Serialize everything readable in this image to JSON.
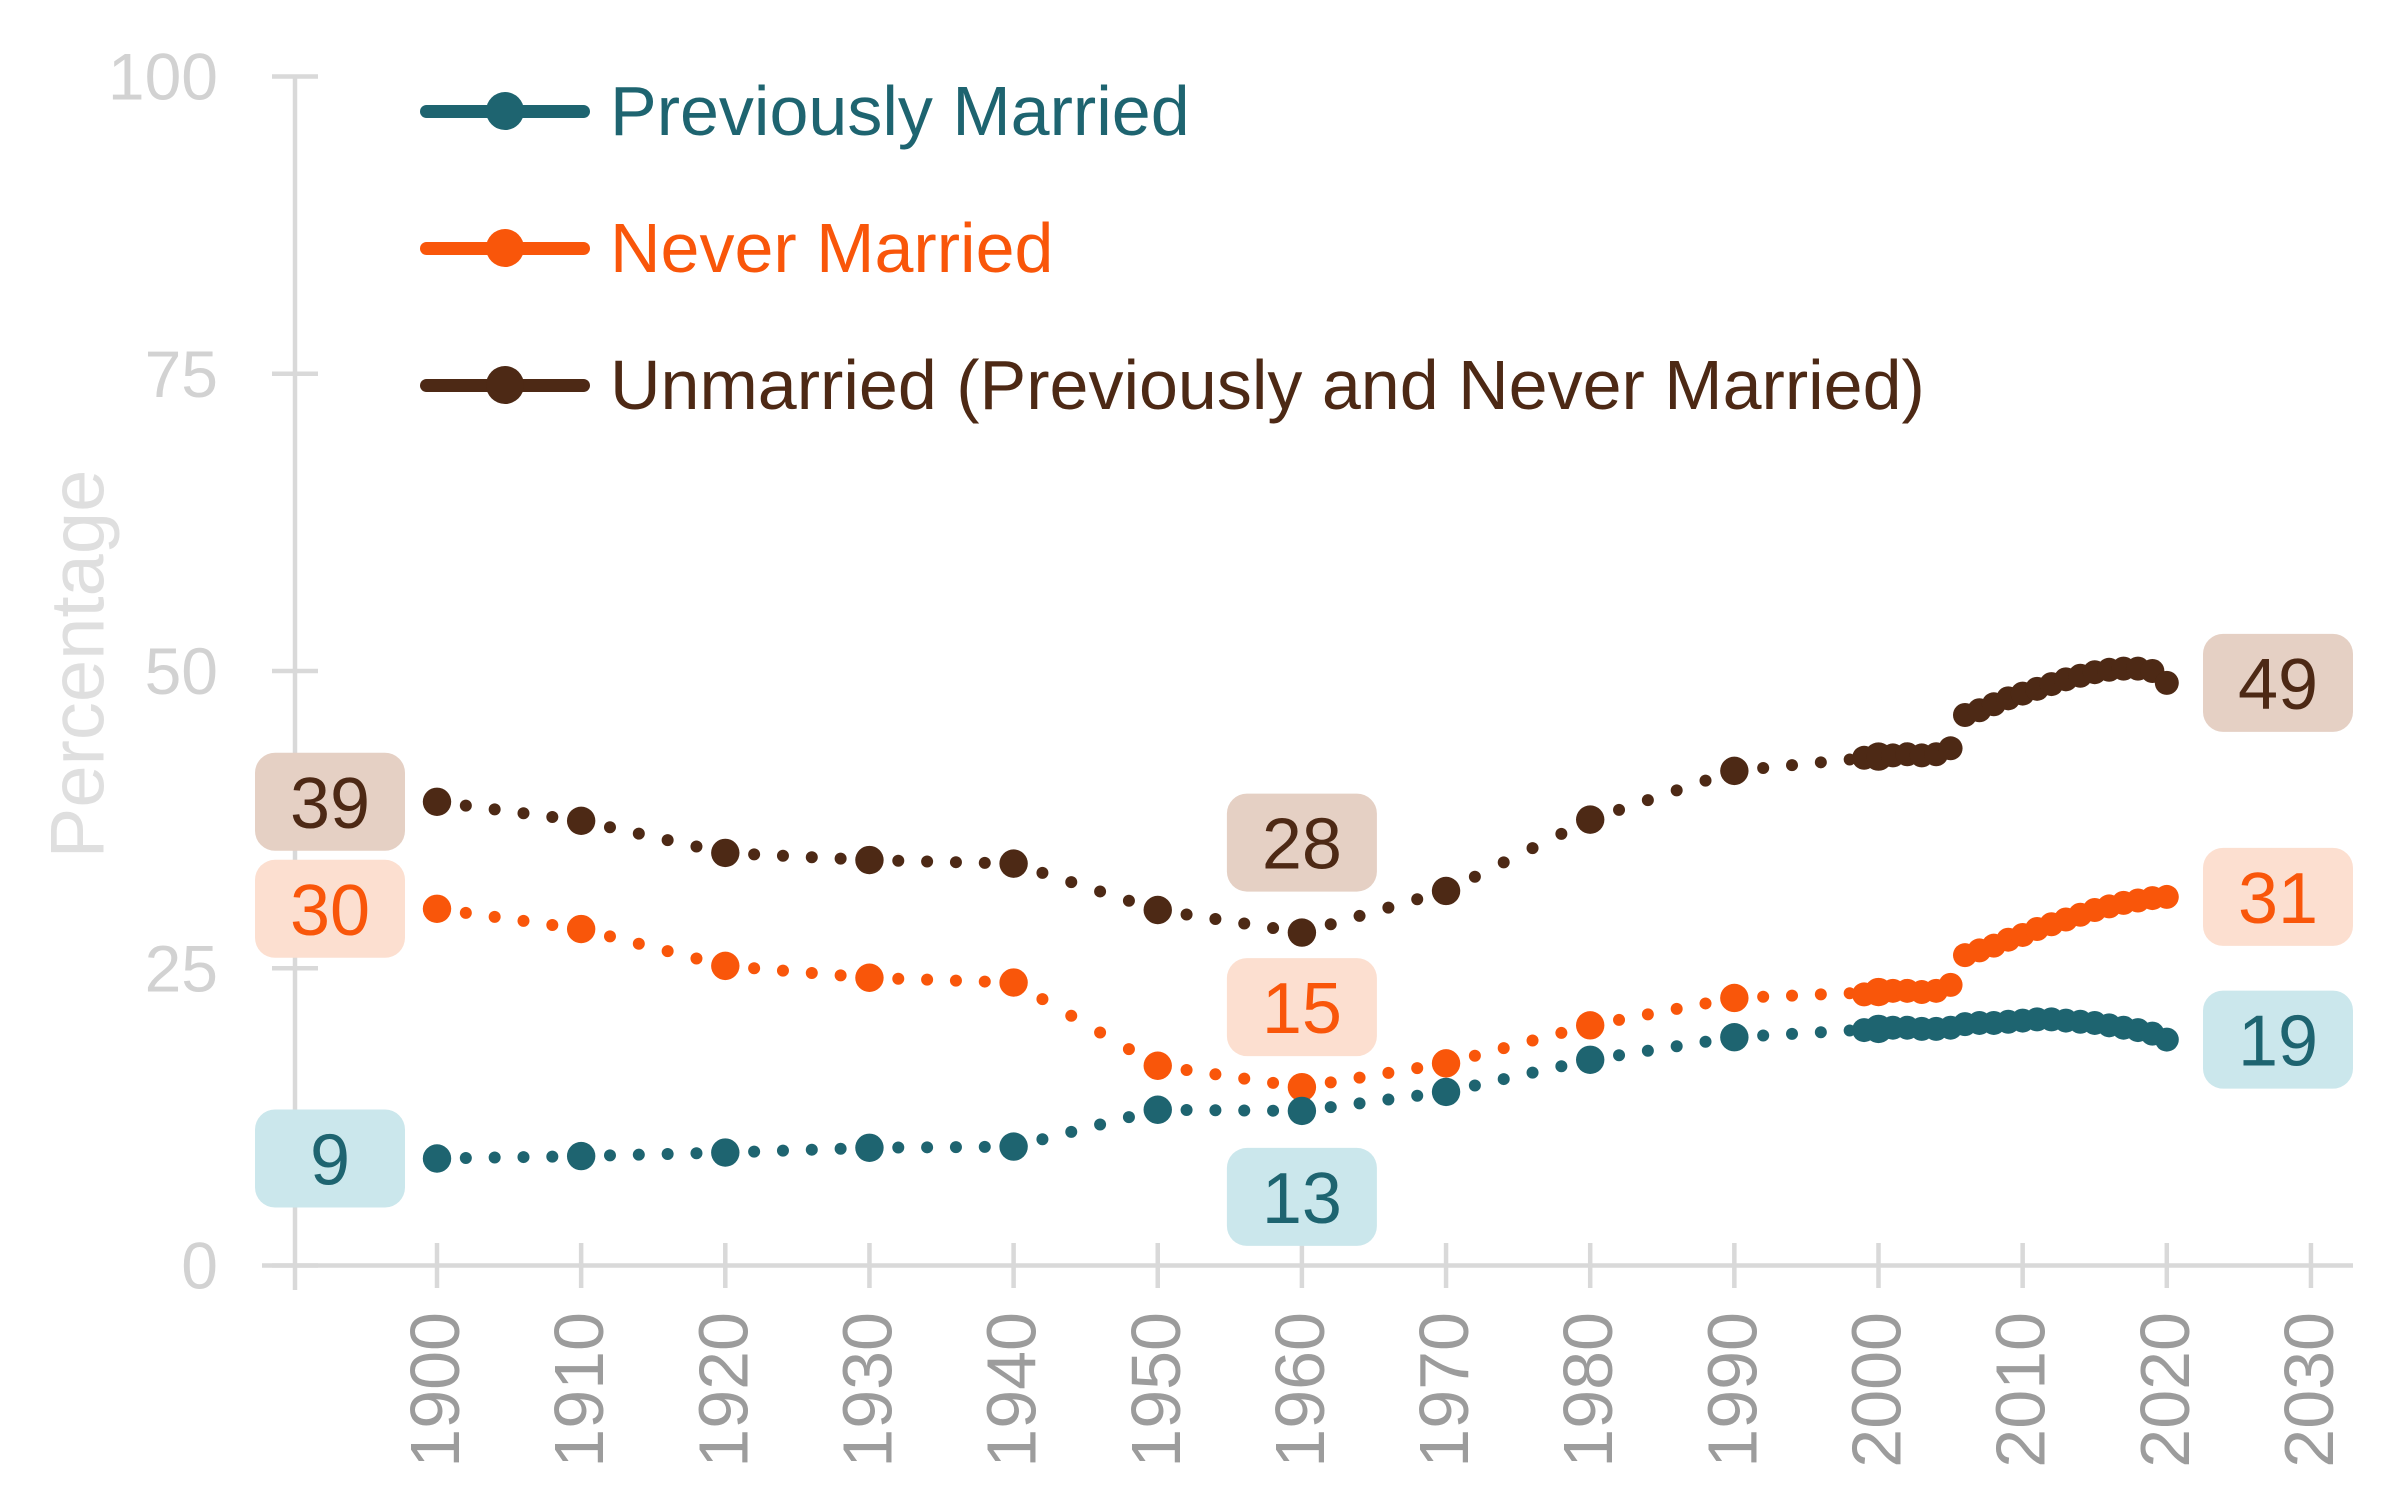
{
  "chart_data": {
    "type": "line",
    "title": "",
    "xlabel": "",
    "ylabel": "Percentage",
    "grid": "off",
    "legend_position": "top-left",
    "ylim": [
      0,
      100
    ],
    "xlim": [
      1890,
      2033
    ],
    "y_ticks": [
      100,
      75,
      50,
      25,
      0
    ],
    "x_ticks": [
      1900,
      1910,
      1920,
      1930,
      1940,
      1950,
      1960,
      1970,
      1980,
      1990,
      2000,
      2010,
      2020,
      2030
    ],
    "marker_style": "large dot each decade, small interpolated dots every 2 years, dense annual dots after 2000",
    "series": [
      {
        "id": "previously",
        "name": "Previously Married",
        "color": "#1E6470",
        "decennial": {
          "years": [
            1900,
            1910,
            1920,
            1930,
            1940,
            1950,
            1960,
            1970,
            1980,
            1990,
            2000
          ],
          "values": [
            9.0,
            9.2,
            9.5,
            9.9,
            10.0,
            13.1,
            13.0,
            14.6,
            17.3,
            19.2,
            19.9
          ]
        },
        "annual": {
          "start_year": 1999,
          "values": [
            19.8,
            19.9,
            20.0,
            20.0,
            19.9,
            19.9,
            20.0,
            20.3,
            20.4,
            20.4,
            20.5,
            20.6,
            20.7,
            20.7,
            20.6,
            20.5,
            20.4,
            20.2,
            20.0,
            19.8,
            19.5,
            19.0
          ]
        }
      },
      {
        "id": "never",
        "name": "Never Married",
        "color": "#F9560A",
        "decennial": {
          "years": [
            1900,
            1910,
            1920,
            1930,
            1940,
            1950,
            1960,
            1970,
            1980,
            1990,
            2000
          ],
          "values": [
            30.0,
            28.3,
            25.2,
            24.2,
            23.8,
            16.8,
            15.0,
            17.0,
            20.2,
            22.5,
            23.0
          ]
        },
        "annual": {
          "start_year": 1999,
          "values": [
            22.8,
            23.0,
            23.1,
            23.1,
            23.0,
            23.1,
            23.6,
            26.1,
            26.5,
            26.9,
            27.4,
            27.8,
            28.3,
            28.7,
            29.1,
            29.5,
            29.9,
            30.2,
            30.5,
            30.7,
            30.9,
            31.0
          ]
        }
      },
      {
        "id": "unmarried",
        "name": "Unmarried (Previously and Never Married)",
        "color": "#4D2915",
        "decennial": {
          "years": [
            1900,
            1910,
            1920,
            1930,
            1940,
            1950,
            1960,
            1970,
            1980,
            1990,
            2000
          ],
          "values": [
            39.0,
            37.4,
            34.7,
            34.1,
            33.8,
            29.9,
            28.0,
            31.5,
            37.5,
            41.6,
            42.8
          ]
        },
        "annual": {
          "start_year": 1999,
          "values": [
            42.7,
            42.8,
            42.9,
            43.0,
            42.9,
            43.0,
            43.5,
            46.3,
            46.7,
            47.2,
            47.7,
            48.1,
            48.5,
            48.9,
            49.3,
            49.6,
            49.9,
            50.1,
            50.2,
            50.2,
            50.0,
            49.0
          ]
        }
      }
    ],
    "annotations": [
      {
        "text": "39",
        "series": "unmarried",
        "value": 39,
        "position": "start"
      },
      {
        "text": "30",
        "series": "never",
        "value": 30,
        "position": "start"
      },
      {
        "text": "9",
        "series": "previously",
        "value": 9,
        "position": "start"
      },
      {
        "text": "28",
        "series": "unmarried",
        "value": 28,
        "position": "mid",
        "year": 1960
      },
      {
        "text": "15",
        "series": "never",
        "value": 15,
        "position": "mid",
        "year": 1960
      },
      {
        "text": "13",
        "series": "previously",
        "value": 13,
        "position": "mid",
        "year": 1960
      },
      {
        "text": "49",
        "series": "unmarried",
        "value": 49,
        "position": "end"
      },
      {
        "text": "31",
        "series": "never",
        "value": 31,
        "position": "end"
      },
      {
        "text": "19",
        "series": "previously",
        "value": 19,
        "position": "end"
      }
    ]
  },
  "legend": {
    "items": [
      {
        "series": "previously",
        "label": "Previously Married"
      },
      {
        "series": "never",
        "label": "Never Married"
      },
      {
        "series": "unmarried",
        "label": "Unmarried (Previously and Never Married)"
      }
    ]
  },
  "colors": {
    "previously": "#1E6470",
    "never": "#F9560A",
    "unmarried": "#4D2915",
    "previously_badge_bg": "#CBE7EC",
    "never_badge_bg": "#FCDFD0",
    "unmarried_badge_bg": "#E5D0C4",
    "axis_line": "#D9D9D9",
    "y_tick_label": "#D2D2D2",
    "x_tick_label": "#9C9C9C",
    "axis_title": "#DFDFDF"
  }
}
